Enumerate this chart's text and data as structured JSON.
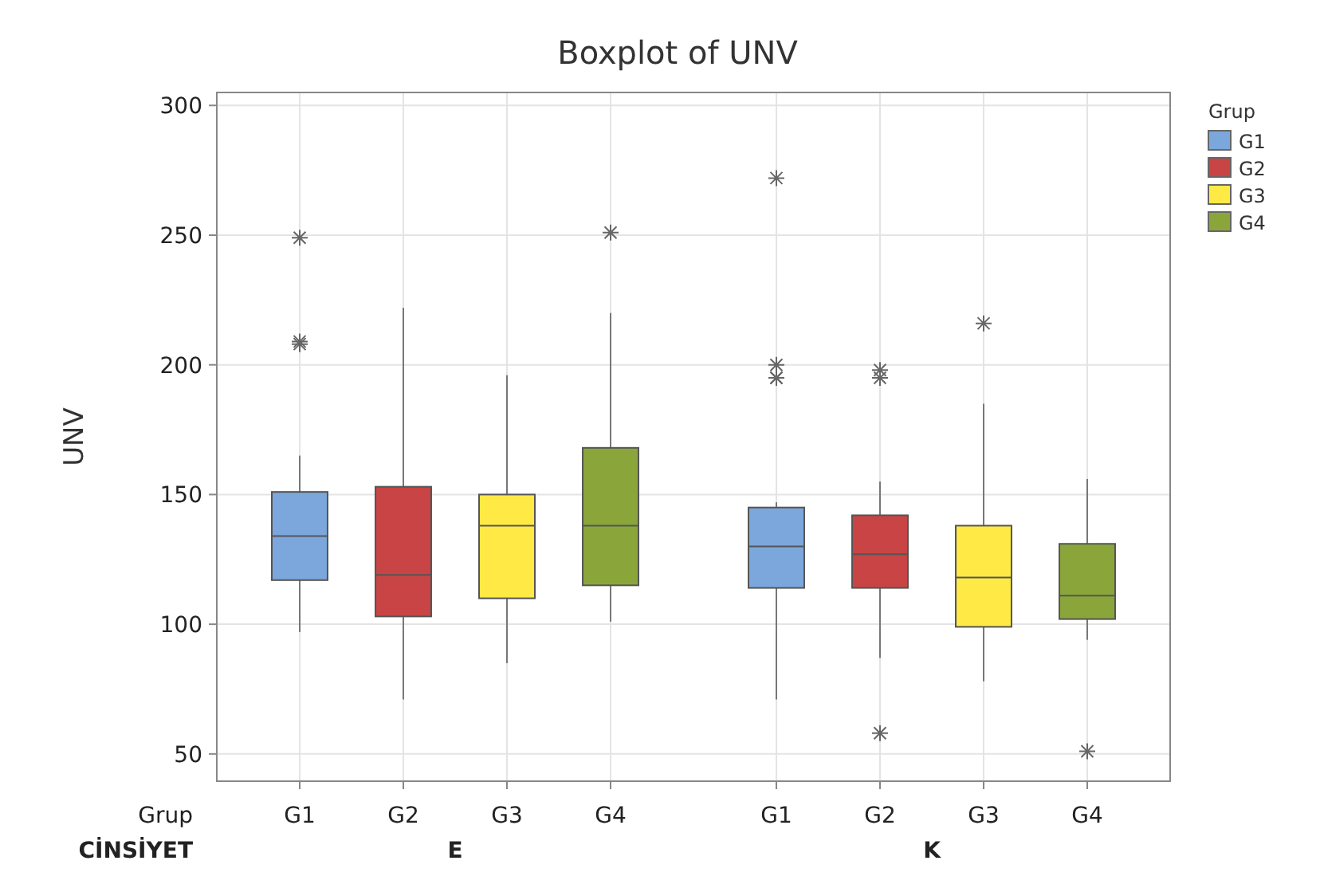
{
  "chart_data": {
    "type": "box",
    "title": "Boxplot of UNV",
    "ylabel": "UNV",
    "xlabel": "CİNSİYET",
    "legend_title": "Grup",
    "annotations": [
      "Grup"
    ],
    "categories": [
      "E",
      "K"
    ],
    "ylim": [
      39.5,
      305
    ],
    "yticks": [
      50,
      100,
      150,
      200,
      250,
      300
    ],
    "grid": true,
    "legend": "top right",
    "marker": "star",
    "series": [
      {
        "name": "G1",
        "color": "#7ba7dc",
        "boxes": [
          {
            "low": 97,
            "q1": 117,
            "median": 134,
            "q3": 151,
            "high": 165,
            "outliers": [
              208,
              209,
              249
            ]
          },
          {
            "low": 71,
            "q1": 114,
            "median": 130,
            "q3": 145,
            "high": 147,
            "outliers": [
              195,
              195,
              200,
              272
            ]
          }
        ]
      },
      {
        "name": "G2",
        "color": "#c94444",
        "boxes": [
          {
            "low": 71,
            "q1": 103,
            "median": 119,
            "q3": 153,
            "high": 222
          },
          {
            "low": 87,
            "q1": 114,
            "median": 127,
            "q3": 142,
            "high": 155,
            "outliers": [
              58,
              195,
              198
            ]
          }
        ]
      },
      {
        "name": "G3",
        "color": "#ffea45",
        "boxes": [
          {
            "low": 85,
            "q1": 110,
            "median": 138,
            "q3": 150,
            "high": 196
          },
          {
            "low": 78,
            "q1": 99,
            "median": 118,
            "q3": 138,
            "high": 185,
            "outliers": [
              216
            ]
          }
        ]
      },
      {
        "name": "G4",
        "color": "#8aa63a",
        "boxes": [
          {
            "low": 101,
            "q1": 115,
            "median": 138,
            "q3": 168,
            "high": 220,
            "outliers": [
              251
            ]
          },
          {
            "low": 94,
            "q1": 102,
            "median": 111,
            "q3": 131,
            "high": 156,
            "outliers": [
              51
            ]
          }
        ]
      }
    ]
  }
}
